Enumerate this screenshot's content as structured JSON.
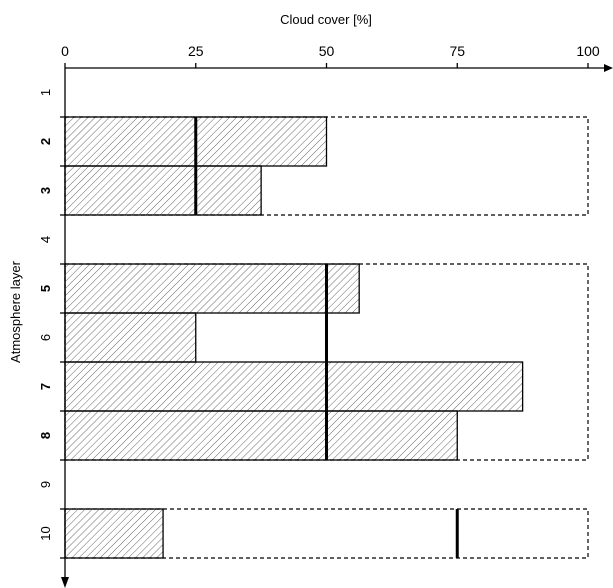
{
  "chart_data": {
    "type": "bar",
    "orientation": "horizontal",
    "xlabel": "Cloud cover [%]",
    "ylabel": "Atmosphere layer",
    "xlim": [
      0,
      100
    ],
    "x_ticks": [
      "0",
      "25",
      "50",
      "75",
      "100"
    ],
    "x_axis_position": "top",
    "categories": [
      "1",
      "2",
      "3",
      "4",
      "5",
      "6",
      "7",
      "8",
      "9",
      "10"
    ],
    "bold_categories": [
      "2",
      "3",
      "5",
      "7",
      "8"
    ],
    "values": [
      0,
      50,
      37.5,
      0,
      56.25,
      25,
      87.5,
      75,
      0,
      18.75
    ],
    "groups": [
      {
        "layers": [
          "2",
          "3"
        ],
        "reference_cover": 100,
        "marker": 25
      },
      {
        "layers": [
          "5",
          "6",
          "7",
          "8"
        ],
        "reference_cover": 100,
        "marker": 50
      },
      {
        "layers": [
          "10"
        ],
        "reference_cover": 100,
        "marker": 75
      }
    ],
    "bar_fill": "hatched",
    "grid": false,
    "colors": {
      "hatch": "#555555",
      "outline": "#000000",
      "background": "#ffffff"
    }
  }
}
